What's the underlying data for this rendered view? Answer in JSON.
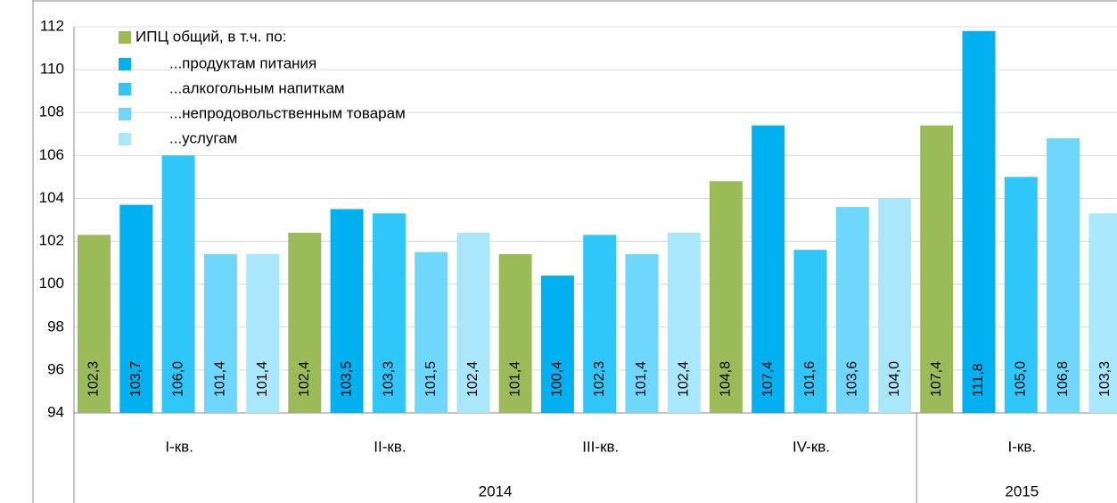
{
  "chart_data": {
    "type": "bar",
    "categories": [
      "I-кв.",
      "II-кв.",
      "III-кв.",
      "IV-кв.",
      "I-кв."
    ],
    "groups": [
      {
        "label": "2014",
        "span": 4
      },
      {
        "label": "2015",
        "span": 1
      }
    ],
    "series": [
      {
        "name": "ИПЦ общий, в т.ч. по:",
        "color": "#9bbb59",
        "values": [
          102.3,
          102.4,
          101.4,
          104.8,
          107.4
        ],
        "value_labels": [
          "102,3",
          "102,4",
          "101,4",
          "104,8",
          "107,4"
        ]
      },
      {
        "name": "...продуктам питания",
        "color": "#00b0f0",
        "values": [
          103.7,
          103.5,
          100.4,
          107.4,
          111.8
        ],
        "value_labels": [
          "103,7",
          "103,5",
          "100,4",
          "107,4",
          "111,8"
        ]
      },
      {
        "name": "...алкогольным напиткам",
        "color": "#2fc6fa",
        "values": [
          106.0,
          103.3,
          102.3,
          101.6,
          105.0
        ],
        "value_labels": [
          "106,0",
          "103,3",
          "102,3",
          "101,6",
          "105,0"
        ]
      },
      {
        "name": "...непродовольственным товарам",
        "color": "#6fd7fc",
        "values": [
          101.4,
          101.5,
          101.4,
          103.6,
          106.8
        ],
        "value_labels": [
          "101,4",
          "101,5",
          "101,4",
          "103,6",
          "106,8"
        ]
      },
      {
        "name": "...услугам",
        "color": "#a9e7fc",
        "values": [
          101.4,
          102.4,
          102.4,
          104.0,
          103.3
        ],
        "value_labels": [
          "101,4",
          "102,4",
          "102,4",
          "104,0",
          "103,3"
        ]
      }
    ],
    "ylim": [
      94,
      112
    ],
    "yticks": [
      94,
      96,
      98,
      100,
      102,
      104,
      106,
      108,
      110,
      112
    ],
    "grid": true
  }
}
